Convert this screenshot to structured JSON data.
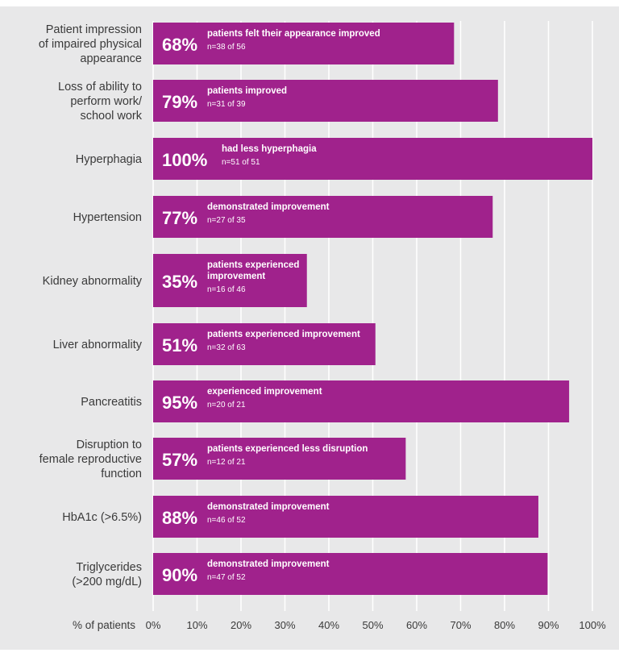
{
  "chart_data": {
    "type": "bar",
    "orientation": "horizontal",
    "xlabel": "% of patients",
    "xlim": [
      0,
      100
    ],
    "ticks": [
      "0%",
      "10%",
      "20%",
      "30%",
      "40%",
      "50%",
      "60%",
      "70%",
      "80%",
      "90%",
      "100%"
    ],
    "grid": true,
    "bar_color": "#a0228c",
    "categories": [
      "Patient impression of impaired physical appearance",
      "Loss of ability to perform work/ school work",
      "Hyperphagia",
      "Hypertension",
      "Kidney abnormality",
      "Liver abnormality",
      "Pancreatitis",
      "Disruption to female reproductive function",
      "HbA1c (>6.5%)",
      "Triglycerides (>200 mg/dL)"
    ],
    "category_lines": [
      [
        "Patient impression",
        "of impaired physical",
        "appearance"
      ],
      [
        "Loss of ability to",
        "perform work/",
        "school work"
      ],
      [
        "Hyperphagia"
      ],
      [
        "Hypertension"
      ],
      [
        "Kidney abnormality"
      ],
      [
        "Liver abnormality"
      ],
      [
        "Pancreatitis"
      ],
      [
        "Disruption to",
        "female reproductive",
        "function"
      ],
      [
        "HbA1c (>6.5%)"
      ],
      [
        "Triglycerides",
        "(>200 mg/dL)"
      ]
    ],
    "values": [
      68.5,
      78.5,
      100,
      77.3,
      35,
      50.6,
      94.7,
      57.5,
      87.7,
      89.8
    ],
    "percent_labels": [
      "68%",
      "79%",
      "100%",
      "77%",
      "35%",
      "51%",
      "95%",
      "57%",
      "88%",
      "90%"
    ],
    "descriptions": [
      [
        "patients felt their appearance improved"
      ],
      [
        "patients improved"
      ],
      [
        "had less hyperphagia"
      ],
      [
        "demonstrated improvement"
      ],
      [
        "patients experienced",
        "improvement"
      ],
      [
        "patients experienced improvement"
      ],
      [
        "experienced improvement"
      ],
      [
        "patients experienced less disruption"
      ],
      [
        "demonstrated improvement"
      ],
      [
        "demonstrated improvement"
      ]
    ],
    "counts": [
      "n=38 of 56",
      "n=31 of 39",
      "n=51 of 51",
      "n=27 of 35",
      "n=16 of 46",
      "n=32 of 63",
      "n=20 of 21",
      "n=12 of 21",
      "n=46 of 52",
      "n=47 of 52"
    ]
  }
}
